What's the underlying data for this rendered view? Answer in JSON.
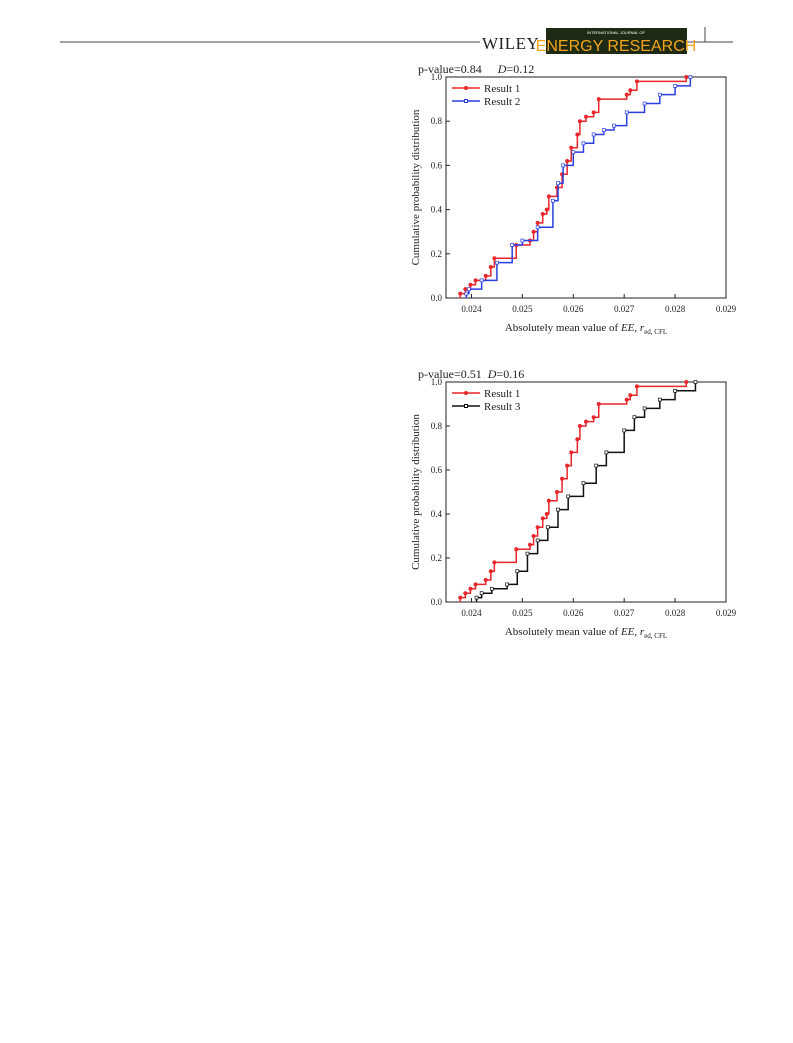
{
  "header": {
    "publisher": "WILEY",
    "journal_prefix": "INTERNATIONAL JOURNAL OF",
    "journal": "ENERGY RESEARCH"
  },
  "chart_data": [
    {
      "type": "step",
      "annotation": {
        "p_value": "p-value=0.84",
        "d_symbol": "D",
        "d_value": "=0.12"
      },
      "xlabel_parts": [
        "Absolutely mean value of ",
        "EE",
        ", ",
        "r",
        "ed, CFL"
      ],
      "ylabel": "Cumulative probability distribution",
      "xlim": [
        0.0235,
        0.029
      ],
      "ylim": [
        0,
        1
      ],
      "xticks": [
        0.024,
        0.025,
        0.026,
        0.027,
        0.028,
        0.029
      ],
      "yticks": [
        {
          "value": 0,
          "label": "0.0"
        },
        0.2,
        0.4,
        0.6,
        0.8,
        {
          "value": 1,
          "label": "1.0"
        }
      ],
      "series": [
        {
          "name": "Result 1",
          "color": "#e8262b",
          "marker": "circle",
          "x": [
            0.02378,
            0.02388,
            0.02398,
            0.02408,
            0.02428,
            0.02438,
            0.02445,
            0.02488,
            0.02515,
            0.02522,
            0.0253,
            0.0254,
            0.02548,
            0.02552,
            0.02568,
            0.02578,
            0.02588,
            0.02596,
            0.02608,
            0.02613,
            0.02625,
            0.0264,
            0.0265,
            0.02705,
            0.02712,
            0.02725,
            0.02822
          ],
          "values": [
            0.02,
            0.04,
            0.06,
            0.08,
            0.1,
            0.14,
            0.18,
            0.24,
            0.26,
            0.3,
            0.34,
            0.38,
            0.4,
            0.46,
            0.5,
            0.56,
            0.62,
            0.68,
            0.74,
            0.8,
            0.82,
            0.84,
            0.9,
            0.92,
            0.94,
            0.98,
            1.0
          ]
        },
        {
          "name": "Result 2",
          "color": "#2b3fe0",
          "marker": "square",
          "x": [
            0.0239,
            0.02395,
            0.0242,
            0.0245,
            0.0248,
            0.025,
            0.0253,
            0.0256,
            0.0257,
            0.0258,
            0.026,
            0.0262,
            0.0264,
            0.0266,
            0.0268,
            0.02705,
            0.0274,
            0.0277,
            0.028,
            0.0283
          ],
          "values": [
            0.02,
            0.04,
            0.08,
            0.16,
            0.24,
            0.26,
            0.32,
            0.44,
            0.52,
            0.6,
            0.66,
            0.7,
            0.74,
            0.76,
            0.78,
            0.84,
            0.88,
            0.92,
            0.96,
            1.0
          ]
        }
      ]
    },
    {
      "type": "step",
      "annotation": {
        "p_value": "p-value=0.51",
        "d_symbol": "D",
        "d_value": "=0.16"
      },
      "xlabel_parts": [
        "Absolutely mean value of ",
        "EE",
        ", ",
        "r",
        "ed, CFL"
      ],
      "ylabel": "Cumulative probability distribution",
      "xlim": [
        0.0235,
        0.029
      ],
      "ylim": [
        0,
        1
      ],
      "xticks": [
        0.024,
        0.025,
        0.026,
        0.027,
        0.028,
        0.029
      ],
      "yticks": [
        {
          "value": 0,
          "label": "0.0"
        },
        0.2,
        0.4,
        0.6,
        0.8,
        {
          "value": 1,
          "label": "1.0"
        }
      ],
      "series": [
        {
          "name": "Result 1",
          "color": "#e8262b",
          "marker": "circle",
          "x": [
            0.02378,
            0.02388,
            0.02398,
            0.02408,
            0.02428,
            0.02438,
            0.02445,
            0.02488,
            0.02515,
            0.02522,
            0.0253,
            0.0254,
            0.02548,
            0.02552,
            0.02568,
            0.02578,
            0.02588,
            0.02596,
            0.02608,
            0.02613,
            0.02625,
            0.0264,
            0.0265,
            0.02705,
            0.02712,
            0.02725,
            0.02822
          ],
          "values": [
            0.02,
            0.04,
            0.06,
            0.08,
            0.1,
            0.14,
            0.18,
            0.24,
            0.26,
            0.3,
            0.34,
            0.38,
            0.4,
            0.46,
            0.5,
            0.56,
            0.62,
            0.68,
            0.74,
            0.8,
            0.82,
            0.84,
            0.9,
            0.92,
            0.94,
            0.98,
            1.0
          ]
        },
        {
          "name": "Result 3",
          "color": "#111111",
          "marker": "square",
          "x": [
            0.0241,
            0.0242,
            0.0244,
            0.0247,
            0.0249,
            0.0251,
            0.0253,
            0.0255,
            0.0257,
            0.0259,
            0.0262,
            0.02645,
            0.02665,
            0.027,
            0.0272,
            0.0274,
            0.0277,
            0.028,
            0.0284
          ],
          "values": [
            0.02,
            0.04,
            0.06,
            0.08,
            0.14,
            0.22,
            0.28,
            0.34,
            0.42,
            0.48,
            0.54,
            0.62,
            0.68,
            0.78,
            0.84,
            0.88,
            0.92,
            0.96,
            1.0
          ]
        }
      ]
    }
  ]
}
